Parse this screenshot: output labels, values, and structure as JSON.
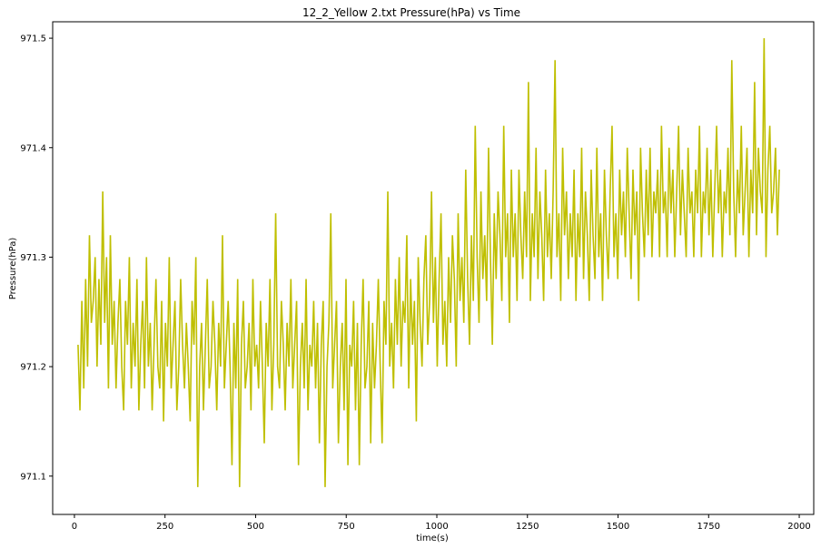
{
  "chart_data": {
    "type": "line",
    "title": "12_2_Yellow 2.txt  Pressure(hPa) vs Time",
    "xlabel": "time(s)",
    "ylabel": "Pressure(hPa)",
    "xlim": [
      -60,
      2040
    ],
    "ylim": [
      971.065,
      971.515
    ],
    "x_ticks": [
      0,
      250,
      500,
      750,
      1000,
      1250,
      1500,
      1750,
      2000
    ],
    "x_tick_labels": [
      "0",
      "250",
      "500",
      "750",
      "1000",
      "1250",
      "1500",
      "1750",
      "2000"
    ],
    "y_ticks": [
      971.1,
      971.2,
      971.3,
      971.4,
      971.5
    ],
    "y_tick_labels": [
      "971.1",
      "971.2",
      "971.3",
      "971.4",
      "971.5"
    ],
    "grid": false,
    "series": [
      {
        "color": "#bfbf00",
        "x_start": 10,
        "x_end": 1945,
        "x_step": 5,
        "y_min": 971.09,
        "y_max": 971.5,
        "values": [
          971.22,
          971.16,
          971.26,
          971.18,
          971.28,
          971.2,
          971.32,
          971.24,
          971.26,
          971.3,
          971.2,
          971.28,
          971.22,
          971.36,
          971.24,
          971.3,
          971.18,
          971.32,
          971.22,
          971.26,
          971.18,
          971.24,
          971.28,
          971.2,
          971.16,
          971.26,
          971.22,
          971.3,
          971.18,
          971.24,
          971.2,
          971.28,
          971.16,
          971.22,
          971.26,
          971.18,
          971.3,
          971.2,
          971.24,
          971.16,
          971.22,
          971.28,
          971.2,
          971.18,
          971.26,
          971.15,
          971.24,
          971.2,
          971.3,
          971.18,
          971.22,
          971.26,
          971.16,
          971.2,
          971.28,
          971.22,
          971.18,
          971.24,
          971.2,
          971.15,
          971.26,
          971.22,
          971.3,
          971.09,
          971.2,
          971.24,
          971.16,
          971.22,
          971.28,
          971.18,
          971.2,
          971.26,
          971.22,
          971.16,
          971.24,
          971.2,
          971.32,
          971.18,
          971.22,
          971.26,
          971.2,
          971.11,
          971.24,
          971.18,
          971.28,
          971.09,
          971.22,
          971.26,
          971.18,
          971.2,
          971.24,
          971.16,
          971.28,
          971.2,
          971.22,
          971.18,
          971.26,
          971.2,
          971.13,
          971.24,
          971.2,
          971.28,
          971.16,
          971.22,
          971.34,
          971.2,
          971.18,
          971.26,
          971.22,
          971.16,
          971.24,
          971.2,
          971.28,
          971.18,
          971.22,
          971.26,
          971.11,
          971.2,
          971.24,
          971.18,
          971.28,
          971.16,
          971.22,
          971.2,
          971.26,
          971.18,
          971.24,
          971.13,
          971.22,
          971.26,
          971.09,
          971.2,
          971.24,
          971.34,
          971.18,
          971.22,
          971.26,
          971.13,
          971.2,
          971.24,
          971.16,
          971.28,
          971.11,
          971.22,
          971.2,
          971.26,
          971.16,
          971.24,
          971.11,
          971.22,
          971.28,
          971.18,
          971.2,
          971.26,
          971.13,
          971.24,
          971.18,
          971.22,
          971.28,
          971.2,
          971.13,
          971.26,
          971.22,
          971.36,
          971.2,
          971.24,
          971.18,
          971.28,
          971.22,
          971.3,
          971.2,
          971.26,
          971.24,
          971.32,
          971.18,
          971.28,
          971.22,
          971.26,
          971.15,
          971.3,
          971.24,
          971.2,
          971.28,
          971.32,
          971.22,
          971.26,
          971.36,
          971.24,
          971.3,
          971.2,
          971.28,
          971.34,
          971.22,
          971.26,
          971.2,
          971.3,
          971.24,
          971.32,
          971.28,
          971.2,
          971.34,
          971.26,
          971.3,
          971.24,
          971.38,
          971.28,
          971.22,
          971.32,
          971.26,
          971.42,
          971.3,
          971.24,
          971.36,
          971.28,
          971.32,
          971.26,
          971.4,
          971.3,
          971.22,
          971.34,
          971.28,
          971.36,
          971.32,
          971.26,
          971.42,
          971.3,
          971.34,
          971.24,
          971.38,
          971.3,
          971.34,
          971.26,
          971.38,
          971.32,
          971.28,
          971.36,
          971.3,
          971.46,
          971.26,
          971.34,
          971.3,
          971.4,
          971.28,
          971.36,
          971.32,
          971.26,
          971.38,
          971.3,
          971.34,
          971.28,
          971.36,
          971.48,
          971.3,
          971.34,
          971.26,
          971.4,
          971.32,
          971.36,
          971.28,
          971.34,
          971.3,
          971.38,
          971.26,
          971.34,
          971.3,
          971.4,
          971.28,
          971.36,
          971.32,
          971.26,
          971.38,
          971.32,
          971.28,
          971.4,
          971.3,
          971.34,
          971.26,
          971.38,
          971.32,
          971.28,
          971.36,
          971.42,
          971.3,
          971.34,
          971.28,
          971.38,
          971.32,
          971.36,
          971.3,
          971.4,
          971.34,
          971.28,
          971.38,
          971.32,
          971.36,
          971.26,
          971.4,
          971.34,
          971.3,
          971.38,
          971.32,
          971.4,
          971.3,
          971.36,
          971.34,
          971.38,
          971.3,
          971.42,
          971.34,
          971.36,
          971.3,
          971.4,
          971.34,
          971.38,
          971.3,
          971.36,
          971.42,
          971.32,
          971.38,
          971.34,
          971.3,
          971.4,
          971.34,
          971.36,
          971.3,
          971.38,
          971.34,
          971.42,
          971.3,
          971.36,
          971.34,
          971.4,
          971.32,
          971.38,
          971.3,
          971.36,
          971.42,
          971.34,
          971.38,
          971.3,
          971.36,
          971.34,
          971.4,
          971.32,
          971.48,
          971.36,
          971.3,
          971.38,
          971.34,
          971.42,
          971.32,
          971.36,
          971.4,
          971.3,
          971.38,
          971.34,
          971.46,
          971.32,
          971.4,
          971.36,
          971.34,
          971.5,
          971.3,
          971.38,
          971.42,
          971.34,
          971.36,
          971.4,
          971.32,
          971.38
        ]
      }
    ]
  }
}
